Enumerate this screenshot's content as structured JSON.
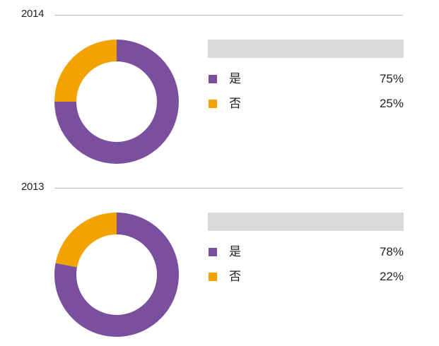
{
  "colors": {
    "yes": "#7a4f9d",
    "no": "#f3a300"
  },
  "chart_data": [
    {
      "type": "pie",
      "donut": true,
      "title": "2014",
      "categories": [
        "是",
        "否"
      ],
      "values": [
        75,
        25
      ],
      "value_labels": [
        "75%",
        "25%"
      ],
      "legend_placement": "right"
    },
    {
      "type": "pie",
      "donut": true,
      "title": "2013",
      "categories": [
        "是",
        "否"
      ],
      "values": [
        78,
        22
      ],
      "value_labels": [
        "78%",
        "22%"
      ],
      "legend_placement": "right"
    }
  ]
}
